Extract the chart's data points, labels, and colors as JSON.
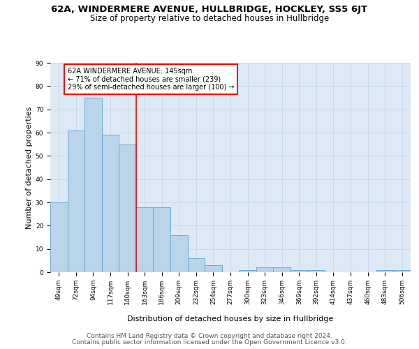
{
  "title": "62A, WINDERMERE AVENUE, HULLBRIDGE, HOCKLEY, SS5 6JT",
  "subtitle": "Size of property relative to detached houses in Hullbridge",
  "xlabel": "Distribution of detached houses by size in Hullbridge",
  "ylabel": "Number of detached properties",
  "categories": [
    "49sqm",
    "72sqm",
    "94sqm",
    "117sqm",
    "140sqm",
    "163sqm",
    "186sqm",
    "209sqm",
    "232sqm",
    "254sqm",
    "277sqm",
    "300sqm",
    "323sqm",
    "346sqm",
    "369sqm",
    "392sqm",
    "414sqm",
    "437sqm",
    "460sqm",
    "483sqm",
    "506sqm"
  ],
  "values": [
    30,
    61,
    75,
    59,
    55,
    28,
    28,
    16,
    6,
    3,
    0,
    1,
    2,
    2,
    1,
    1,
    0,
    0,
    0,
    1,
    1
  ],
  "bar_color": "#bad4ea",
  "bar_edgecolor": "#6aaad4",
  "red_line_x": 4.5,
  "annotation_text": "62A WINDERMERE AVENUE: 145sqm\n← 71% of detached houses are smaller (239)\n29% of semi-detached houses are larger (100) →",
  "footer_line1": "Contains HM Land Registry data © Crown copyright and database right 2024.",
  "footer_line2": "Contains public sector information licensed under the Open Government Licence v3.0.",
  "ylim": [
    0,
    90
  ],
  "yticks": [
    0,
    10,
    20,
    30,
    40,
    50,
    60,
    70,
    80,
    90
  ],
  "grid_color": "#c8d8eb",
  "background_color": "#ddeaf6",
  "title_fontsize": 9.5,
  "subtitle_fontsize": 8.5,
  "xlabel_fontsize": 8,
  "ylabel_fontsize": 8,
  "tick_fontsize": 6.5,
  "annotation_fontsize": 7,
  "footer_fontsize": 6.5
}
